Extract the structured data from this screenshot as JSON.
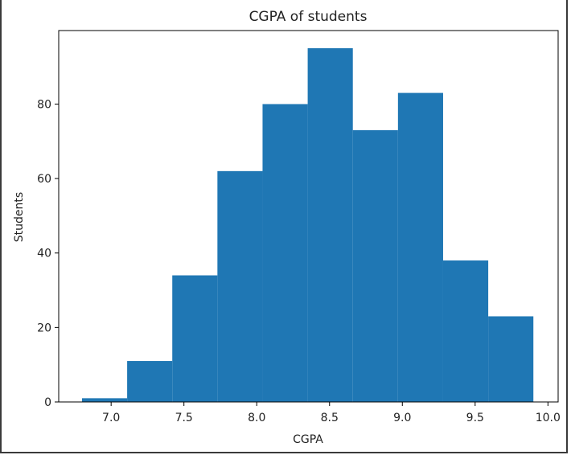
{
  "chart_data": {
    "type": "bar",
    "subtype": "histogram",
    "title": "CGPA of students",
    "xlabel": "CGPA",
    "ylabel": "Students",
    "bin_edges": [
      6.8,
      7.11,
      7.42,
      7.73,
      8.04,
      8.35,
      8.66,
      8.97,
      9.28,
      9.59,
      9.9
    ],
    "values": [
      1,
      11,
      34,
      62,
      80,
      95,
      73,
      83,
      38,
      23
    ],
    "xlim": [
      6.64,
      10.07
    ],
    "ylim": [
      0,
      99.75
    ],
    "xticks": [
      7.0,
      7.5,
      8.0,
      8.5,
      9.0,
      9.5,
      10.0
    ],
    "xtick_labels": [
      "7.0",
      "7.5",
      "8.0",
      "8.5",
      "9.0",
      "9.5",
      "10.0"
    ],
    "yticks": [
      0,
      20,
      40,
      60,
      80
    ],
    "ytick_labels": [
      "0",
      "20",
      "40",
      "60",
      "80"
    ],
    "bar_color": "#1f77b4",
    "grid": false,
    "legend": "none"
  }
}
